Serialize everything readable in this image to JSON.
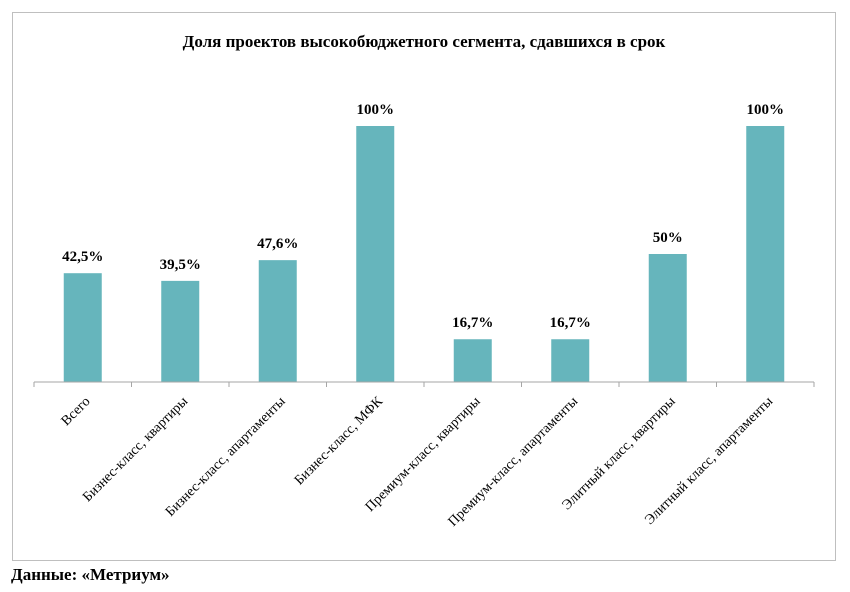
{
  "chart_data": {
    "type": "bar",
    "title": "Доля проектов высокобюджетного сегмента, сдавшихся в срок",
    "categories": [
      "Всего",
      "Бизнес-класс, квартиры",
      "Бизнес-класс, апартаменты",
      "Бизнес-класс, МФК",
      "Премиум-класс, квартиры",
      "Премиум-класс, апартаменты",
      "Элитный класс, квартиры",
      "Элитный класс, апартаменты"
    ],
    "values": [
      42.5,
      39.5,
      47.6,
      100,
      16.7,
      16.7,
      50,
      100
    ],
    "data_labels": [
      "42,5%",
      "39,5%",
      "47,6%",
      "100%",
      "16,7%",
      "16,7%",
      "50%",
      "100%"
    ],
    "ylim": [
      0,
      100
    ],
    "grid": false,
    "legend": "none",
    "bar_color": "#66b5bc",
    "axis_color": "#a6a6a6"
  },
  "source": "Данные: «Метриум»"
}
